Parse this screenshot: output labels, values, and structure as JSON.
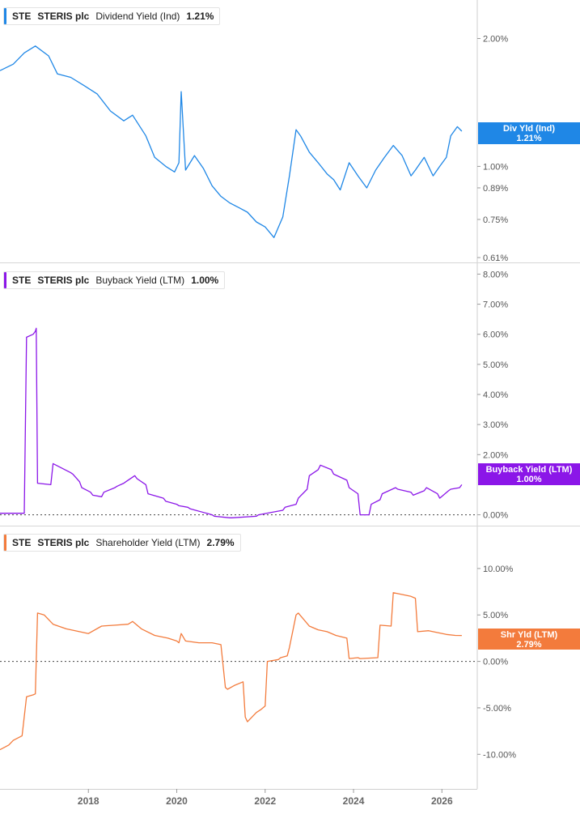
{
  "chart_data": [
    {
      "type": "line",
      "ticker": "STE",
      "company": "STERIS plc",
      "metric": "Dividend Yield (Ind)",
      "current_value": "1.21%",
      "tag_label": "Div Yld (Ind)",
      "color": "#1f87e6",
      "y_scale": "log",
      "ylim": [
        0.61,
        2.4
      ],
      "yticks": [
        {
          "value": 2.0,
          "label": "2.00%"
        },
        {
          "value": 1.0,
          "label": "1.00%"
        },
        {
          "value": 0.89,
          "label": "0.89%"
        },
        {
          "value": 0.75,
          "label": "0.75%"
        },
        {
          "value": 0.61,
          "label": "0.61%"
        }
      ],
      "x": [
        2016.0,
        2016.3,
        2016.55,
        2016.8,
        2017.1,
        2017.3,
        2017.6,
        2017.9,
        2018.2,
        2018.5,
        2018.8,
        2019.0,
        2019.3,
        2019.5,
        2019.75,
        2019.95,
        2020.05,
        2020.1,
        2020.2,
        2020.4,
        2020.6,
        2020.8,
        2021.0,
        2021.2,
        2021.4,
        2021.6,
        2021.8,
        2022.0,
        2022.2,
        2022.4,
        2022.55,
        2022.7,
        2022.8,
        2023.0,
        2023.2,
        2023.4,
        2023.55,
        2023.7,
        2023.9,
        2024.1,
        2024.3,
        2024.5,
        2024.7,
        2024.9,
        2025.1,
        2025.3,
        2025.4,
        2025.6,
        2025.8,
        2025.95,
        2026.1,
        2026.2,
        2026.35,
        2026.45
      ],
      "values": [
        1.68,
        1.74,
        1.85,
        1.92,
        1.82,
        1.65,
        1.62,
        1.55,
        1.48,
        1.35,
        1.28,
        1.32,
        1.18,
        1.05,
        1.0,
        0.97,
        1.02,
        1.5,
        0.98,
        1.06,
        0.99,
        0.9,
        0.85,
        0.82,
        0.8,
        0.78,
        0.74,
        0.72,
        0.68,
        0.76,
        0.95,
        1.22,
        1.18,
        1.08,
        1.02,
        0.96,
        0.93,
        0.88,
        1.02,
        0.95,
        0.89,
        0.98,
        1.05,
        1.12,
        1.06,
        0.95,
        0.98,
        1.05,
        0.95,
        1.0,
        1.05,
        1.18,
        1.24,
        1.21
      ]
    },
    {
      "type": "line",
      "ticker": "STE",
      "company": "STERIS plc",
      "metric": "Buyback Yield (LTM)",
      "current_value": "1.00%",
      "tag_label": "Buyback Yield (LTM)",
      "color": "#8b16e8",
      "ylim": [
        -0.2,
        8.2
      ],
      "yticks": [
        {
          "value": 8,
          "label": "8.00%"
        },
        {
          "value": 7,
          "label": "7.00%"
        },
        {
          "value": 6,
          "label": "6.00%"
        },
        {
          "value": 5,
          "label": "5.00%"
        },
        {
          "value": 4,
          "label": "4.00%"
        },
        {
          "value": 3,
          "label": "3.00%"
        },
        {
          "value": 2,
          "label": "2.00%"
        },
        {
          "value": 0,
          "label": "0.00%"
        }
      ],
      "zero_line": true,
      "x": [
        2016.0,
        2016.15,
        2016.15,
        2016.55,
        2016.6,
        2016.75,
        2016.8,
        2016.82,
        2016.85,
        2017.15,
        2017.2,
        2017.6,
        2017.65,
        2017.8,
        2017.85,
        2018.05,
        2018.1,
        2018.3,
        2018.35,
        2018.6,
        2018.65,
        2018.8,
        2018.85,
        2019.05,
        2019.1,
        2019.3,
        2019.35,
        2019.7,
        2019.75,
        2020.0,
        2020.05,
        2020.25,
        2020.3,
        2020.8,
        2020.85,
        2021.2,
        2021.25,
        2021.8,
        2021.85,
        2022.4,
        2022.45,
        2022.7,
        2022.75,
        2022.95,
        2023.0,
        2023.2,
        2023.25,
        2023.5,
        2023.55,
        2023.85,
        2023.9,
        2024.1,
        2024.15,
        2024.35,
        2024.4,
        2024.6,
        2024.65,
        2024.95,
        2025.0,
        2025.3,
        2025.35,
        2025.6,
        2025.65,
        2025.9,
        2025.95,
        2026.15,
        2026.2,
        2026.4,
        2026.45
      ],
      "values": [
        0.05,
        0.05,
        0.05,
        0.05,
        5.9,
        6.0,
        6.1,
        6.2,
        1.05,
        1.0,
        1.7,
        1.4,
        1.35,
        1.1,
        0.9,
        0.75,
        0.65,
        0.6,
        0.75,
        0.9,
        0.95,
        1.05,
        1.1,
        1.3,
        1.2,
        1.0,
        0.7,
        0.55,
        0.45,
        0.35,
        0.3,
        0.25,
        0.2,
        0.0,
        -0.05,
        -0.1,
        -0.1,
        -0.05,
        0.0,
        0.15,
        0.25,
        0.35,
        0.55,
        0.85,
        1.3,
        1.5,
        1.65,
        1.5,
        1.35,
        1.15,
        0.9,
        0.7,
        0.0,
        0.0,
        0.35,
        0.5,
        0.7,
        0.9,
        0.85,
        0.75,
        0.65,
        0.8,
        0.9,
        0.7,
        0.55,
        0.8,
        0.85,
        0.9,
        1.0
      ]
    },
    {
      "type": "line",
      "ticker": "STE",
      "company": "STERIS plc",
      "metric": "Shareholder Yield (LTM)",
      "current_value": "2.79%",
      "tag_label": "Shr Yld (LTM)",
      "color": "#f37b3c",
      "ylim": [
        -13.2,
        14.0
      ],
      "yticks": [
        {
          "value": 10,
          "label": "10.00%"
        },
        {
          "value": 5,
          "label": "5.00%"
        },
        {
          "value": 0,
          "label": "0.00%"
        },
        {
          "value": -5,
          "label": "-5.00%"
        },
        {
          "value": -10,
          "label": "-10.00%"
        }
      ],
      "zero_line": true,
      "x": [
        2016.0,
        2016.2,
        2016.3,
        2016.5,
        2016.6,
        2016.75,
        2016.8,
        2016.85,
        2017.0,
        2017.2,
        2017.5,
        2017.8,
        2018.0,
        2018.3,
        2018.6,
        2018.9,
        2019.0,
        2019.2,
        2019.5,
        2019.8,
        2020.0,
        2020.05,
        2020.1,
        2020.2,
        2020.5,
        2020.8,
        2021.0,
        2021.1,
        2021.15,
        2021.3,
        2021.5,
        2021.55,
        2021.6,
        2021.8,
        2021.9,
        2022.0,
        2022.05,
        2022.3,
        2022.35,
        2022.5,
        2022.55,
        2022.7,
        2022.75,
        2023.0,
        2023.2,
        2023.4,
        2023.6,
        2023.85,
        2023.9,
        2024.1,
        2024.15,
        2024.55,
        2024.6,
        2024.85,
        2024.9,
        2025.2,
        2025.3,
        2025.4,
        2025.45,
        2025.7,
        2025.9,
        2026.1,
        2026.3,
        2026.45
      ],
      "values": [
        -9.5,
        -9.0,
        -8.5,
        -8.0,
        -3.8,
        -3.6,
        -3.5,
        5.2,
        5.0,
        4.0,
        3.5,
        3.2,
        3.0,
        3.8,
        3.9,
        4.0,
        4.3,
        3.5,
        2.8,
        2.5,
        2.2,
        2.0,
        3.0,
        2.2,
        2.0,
        2.0,
        1.8,
        -2.8,
        -3.0,
        -2.6,
        -2.2,
        -6.0,
        -6.5,
        -5.5,
        -5.2,
        -4.8,
        0.0,
        0.2,
        0.4,
        0.6,
        1.5,
        5.0,
        5.2,
        3.8,
        3.4,
        3.2,
        2.8,
        2.5,
        0.3,
        0.4,
        0.3,
        0.4,
        3.9,
        3.8,
        7.4,
        7.1,
        7.0,
        6.8,
        3.2,
        3.3,
        3.1,
        2.9,
        2.8,
        2.79
      ]
    }
  ],
  "x_axis": {
    "ticks": [
      {
        "value": 2018,
        "label": "2018"
      },
      {
        "value": 2020,
        "label": "2020"
      },
      {
        "value": 2022,
        "label": "2022"
      },
      {
        "value": 2024,
        "label": "2024"
      },
      {
        "value": 2026,
        "label": "2026"
      }
    ],
    "range": [
      2016.0,
      2026.8
    ]
  }
}
